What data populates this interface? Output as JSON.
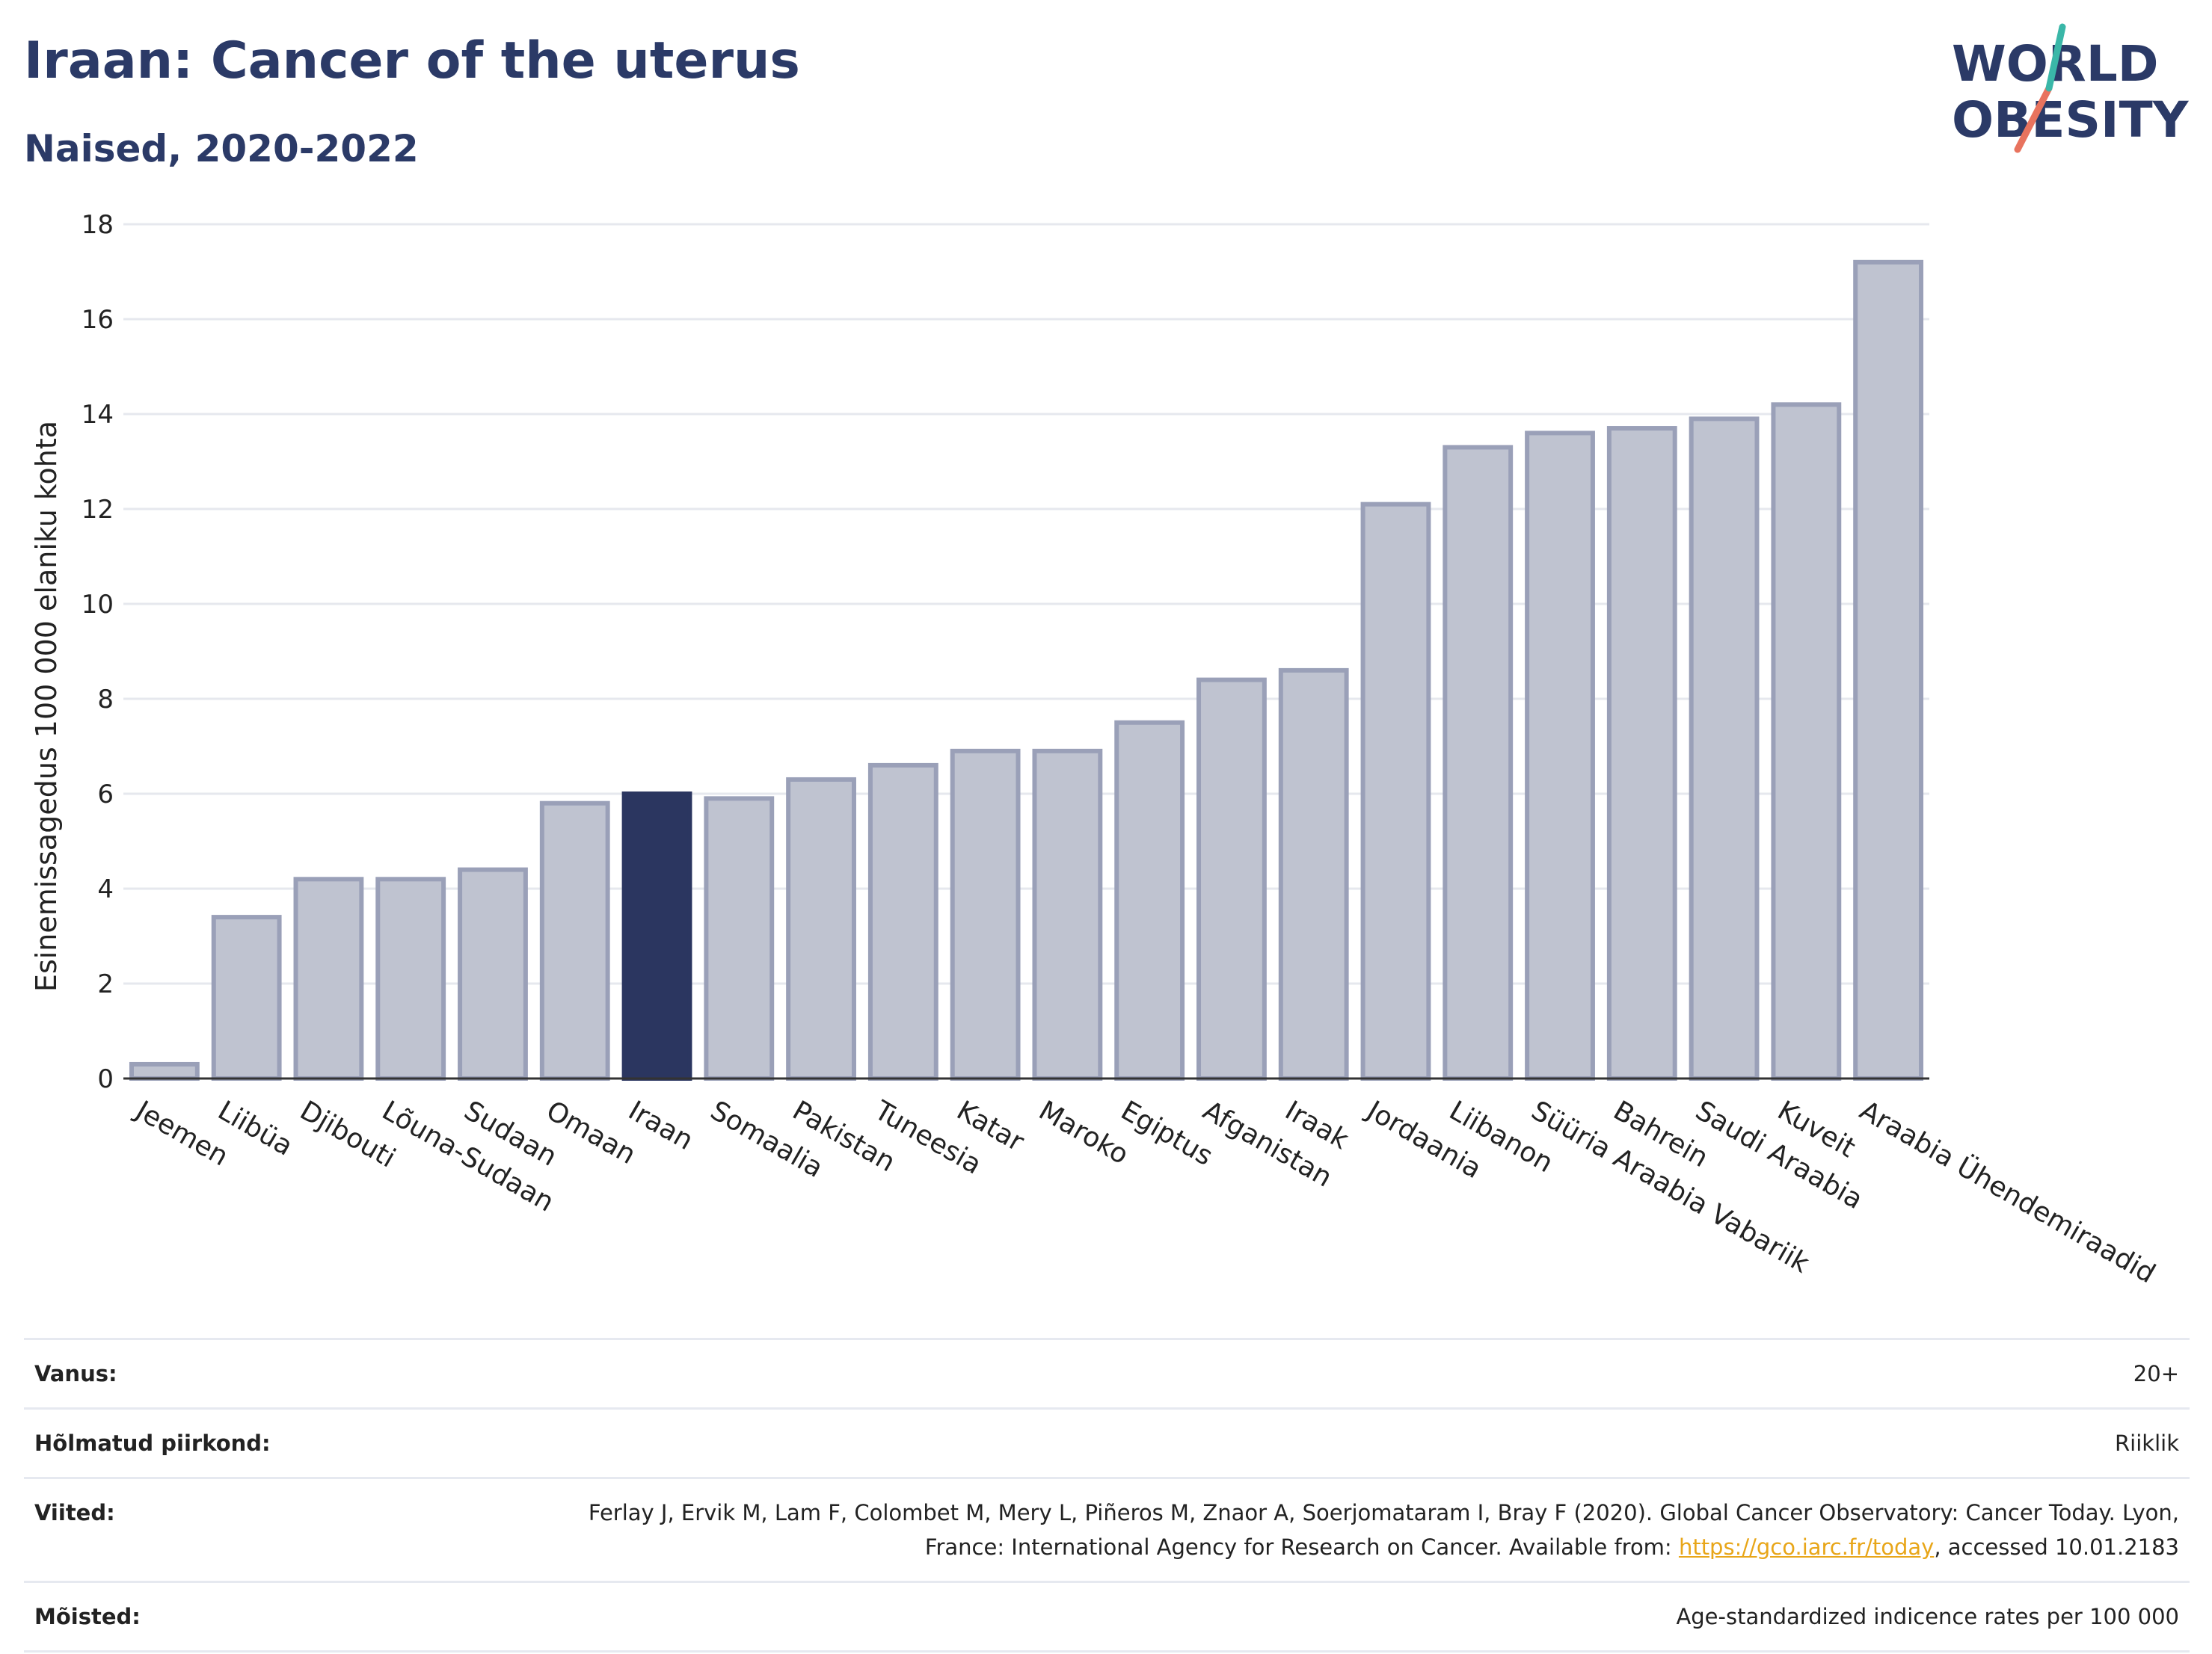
{
  "title": "Iraan: Cancer of the uterus",
  "subtitle": "Naised, 2020-2022",
  "logo": {
    "line1": "WORLD",
    "line2": "OBESITY"
  },
  "colors": {
    "bar": "#bfc3d0",
    "bar_border": "#9aa0b8",
    "highlight": "#2b3660",
    "title": "#2b3a67",
    "grid": "#e6e8ee",
    "link": "#e8a619",
    "logo_teal": "#3ab7a8",
    "logo_red": "#e8735e"
  },
  "chart_data": {
    "type": "bar",
    "categories": [
      "Jeemen",
      "Liibüa",
      "Djibouti",
      "Lõuna-Sudaan",
      "Sudaan",
      "Omaan",
      "Iraan",
      "Somaalia",
      "Pakistan",
      "Tuneesia",
      "Katar",
      "Maroko",
      "Egiptus",
      "Afganistan",
      "Iraak",
      "Jordaania",
      "Liibanon",
      "Süüria Araabia Vabariik",
      "Bahrein",
      "Saudi Araabia",
      "Kuveit",
      "Araabia Ühendemiraadid"
    ],
    "values": [
      0.3,
      3.4,
      4.2,
      4.2,
      4.4,
      5.8,
      6.0,
      5.9,
      6.3,
      6.6,
      6.9,
      6.9,
      7.5,
      8.4,
      8.6,
      12.1,
      13.3,
      13.6,
      13.7,
      13.9,
      14.2,
      17.2
    ],
    "highlight": "Iraan",
    "ylabel": "Esinemissagedus 100 000 elaniku kohta",
    "xlabel": "",
    "ylim": [
      0,
      18
    ],
    "yticks": [
      "0",
      "2",
      "4",
      "6",
      "8",
      "10",
      "12",
      "14",
      "16",
      "18"
    ],
    "grid": true
  },
  "meta": [
    {
      "key": "Vanus:",
      "value": "20+"
    },
    {
      "key": "Hõlmatud piirkond:",
      "value": "Riiklik"
    },
    {
      "key": "Viited:",
      "value_pre": "Ferlay J, Ervik M, Lam F, Colombet M, Mery L, Piñeros M, Znaor A, Soerjomataram I, Bray F (2020). Global Cancer Observatory: Cancer Today. Lyon, France: International Agency for Research on Cancer. Available from: ",
      "link": "https://gco.iarc.fr/today",
      "value_post": ", accessed 10.01.2183"
    },
    {
      "key": "Mõisted:",
      "value": "Age-standardized indicence rates per 100 000"
    }
  ]
}
